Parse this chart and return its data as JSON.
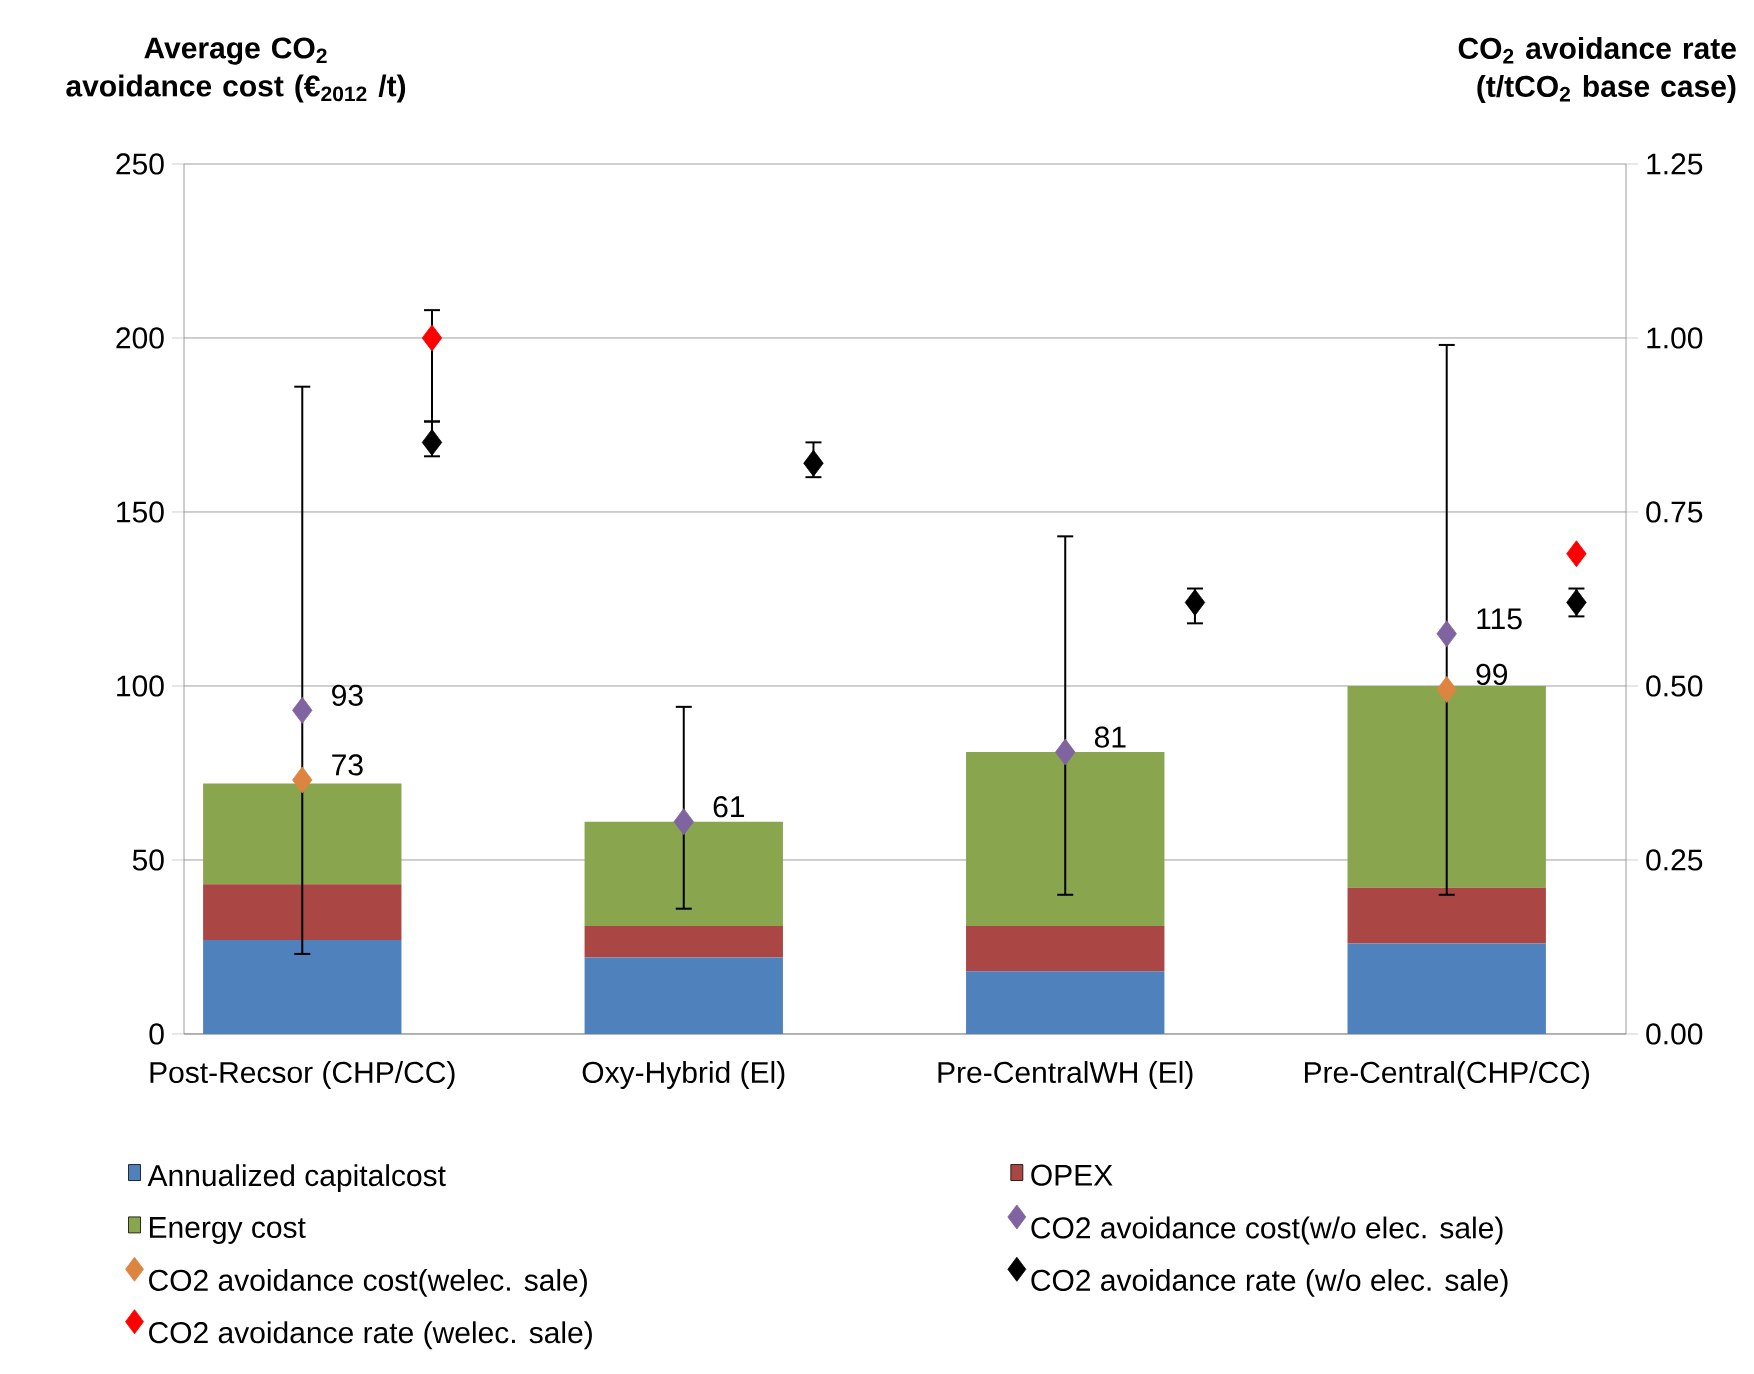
{
  "chart_data": {
    "type": "bar",
    "stacked": true,
    "ylabel": "Average CO$_{2}$ avoidance cost (€$_{2012}$ /t)",
    "y2label": "CO$_{2}$ avoidance rate (t/tCO$_{2}$ base case)",
    "categories": [
      "Post-Recsor (CHP/CC)",
      "Oxy-Hybrid (El)",
      "Pre-CentralWH  (El)",
      "Pre-Central(CHP/CC)"
    ],
    "series": [
      {
        "name": "Annualized capitalcost",
        "color": "#4f81bd",
        "values": [
          27,
          22,
          18,
          26
        ]
      },
      {
        "name": "OPEX",
        "color": "#aa4644",
        "values": [
          16,
          9,
          13,
          16
        ]
      },
      {
        "name": "Energy cost",
        "color": "#89a54e",
        "values": [
          29,
          30,
          50,
          58
        ]
      },
      {
        "name": "CO2 avoidance cost(w/o  elec. sale)",
        "type": "scatter",
        "marker": "diamond",
        "color": "#8064a2",
        "values": [
          93,
          61,
          81,
          115
        ],
        "errors": [
          [
            23,
            186
          ],
          [
            36,
            94
          ],
          [
            40,
            143
          ],
          [
            40,
            198
          ]
        ],
        "value_labels": [
          "93",
          "61",
          "81",
          "115"
        ]
      },
      {
        "name": "CO2 avoidance cost(welec.   sale)",
        "type": "scatter",
        "marker": "diamond",
        "color": "#dd8540",
        "values": [
          73,
          null,
          null,
          99
        ],
        "value_labels": [
          "73",
          null,
          null,
          "99"
        ]
      },
      {
        "name": "CO2 avoidance rate (w/o elec. sale)",
        "type": "scatter",
        "marker": "diamond",
        "axis": "y2",
        "color": "#000000",
        "values": [
          0.85,
          0.82,
          0.62,
          0.62
        ],
        "errors": [
          [
            0.83,
            0.88
          ],
          [
            0.8,
            0.85
          ],
          [
            0.59,
            0.64
          ],
          [
            0.6,
            0.64
          ]
        ]
      },
      {
        "name": "CO2 avoidance rate (welec.  sale)",
        "type": "scatter",
        "marker": "diamond",
        "axis": "y2",
        "color": "#ff0000",
        "values": [
          1.0,
          null,
          null,
          0.69
        ],
        "errors": [
          [
            0.88,
            1.04
          ],
          null,
          null,
          null
        ]
      }
    ],
    "ylim": [
      0,
      250
    ],
    "yticks": [
      0,
      50,
      100,
      150,
      200,
      250
    ],
    "y2lim": [
      0,
      1.25
    ],
    "y2ticks": [
      {
        "value": 0,
        "label": "0.00"
      },
      {
        "value": 0.25,
        "label": "0.25"
      },
      {
        "value": 0.5,
        "label": "0.50"
      },
      {
        "value": 0.75,
        "label": "0.75"
      },
      {
        "value": 1.0,
        "label": "1.00"
      },
      {
        "value": 1.25,
        "label": "1.25"
      }
    ],
    "grid": "y",
    "legend": "bottom"
  }
}
